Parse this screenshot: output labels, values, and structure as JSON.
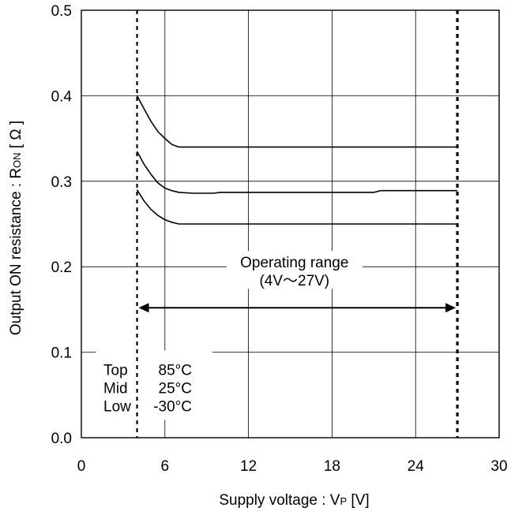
{
  "chart_data": {
    "type": "line",
    "title": "",
    "xlabel": "Supply voltage : V",
    "xlabel_sub": "P",
    "xlabel_unit": " [V]",
    "ylabel": "Output ON resistance : R",
    "ylabel_sub": "ON",
    "ylabel_unit": " [ Ω ]",
    "xlim": [
      0,
      30
    ],
    "ylim": [
      0.0,
      0.5
    ],
    "xticks": [
      0,
      6,
      12,
      18,
      24,
      30
    ],
    "xtick_labels": [
      "0",
      "6",
      "12",
      "18",
      "24",
      "30"
    ],
    "yticks": [
      0.0,
      0.1,
      0.2,
      0.3,
      0.4,
      0.5
    ],
    "ytick_labels": [
      "0.0",
      "0.1",
      "0.2",
      "0.3",
      "0.4",
      "0.5"
    ],
    "grid": true,
    "series": [
      {
        "legend_label": "Top",
        "temperature": "85°C",
        "x": [
          4.0,
          4.5,
          5.0,
          5.5,
          6.0,
          6.5,
          7.0,
          8.0,
          10.0,
          15.0,
          20.0,
          25.0,
          27.0
        ],
        "y": [
          0.4,
          0.385,
          0.37,
          0.358,
          0.35,
          0.343,
          0.34,
          0.34,
          0.34,
          0.34,
          0.34,
          0.34,
          0.34
        ]
      },
      {
        "legend_label": "Mid",
        "temperature": "25°C",
        "x": [
          4.0,
          4.5,
          5.0,
          5.5,
          6.0,
          6.5,
          7.0,
          8.0,
          9.5,
          10.0,
          15.0,
          21.0,
          21.5,
          25.0,
          27.0
        ],
        "y": [
          0.335,
          0.32,
          0.308,
          0.298,
          0.292,
          0.289,
          0.287,
          0.286,
          0.286,
          0.287,
          0.287,
          0.287,
          0.289,
          0.289,
          0.289
        ]
      },
      {
        "legend_label": "Low",
        "temperature": "-30°C",
        "x": [
          4.0,
          4.5,
          5.0,
          5.5,
          6.0,
          6.5,
          7.0,
          8.0,
          10.0,
          15.0,
          20.0,
          25.0,
          27.0
        ],
        "y": [
          0.29,
          0.277,
          0.267,
          0.26,
          0.255,
          0.252,
          0.25,
          0.25,
          0.25,
          0.25,
          0.25,
          0.25,
          0.25
        ]
      }
    ],
    "operating_range": {
      "x_min": 4,
      "x_max": 27,
      "arrow_y": 0.152,
      "label_line1": "Operating range",
      "label_line2": "(4V～27V)"
    },
    "legend": {
      "placement": "bottom-left",
      "entries": [
        {
          "name": "Top",
          "temp": "85°C"
        },
        {
          "name": "Mid",
          "temp": "25°C"
        },
        {
          "name": "Low",
          "temp": "-30°C"
        }
      ]
    }
  }
}
